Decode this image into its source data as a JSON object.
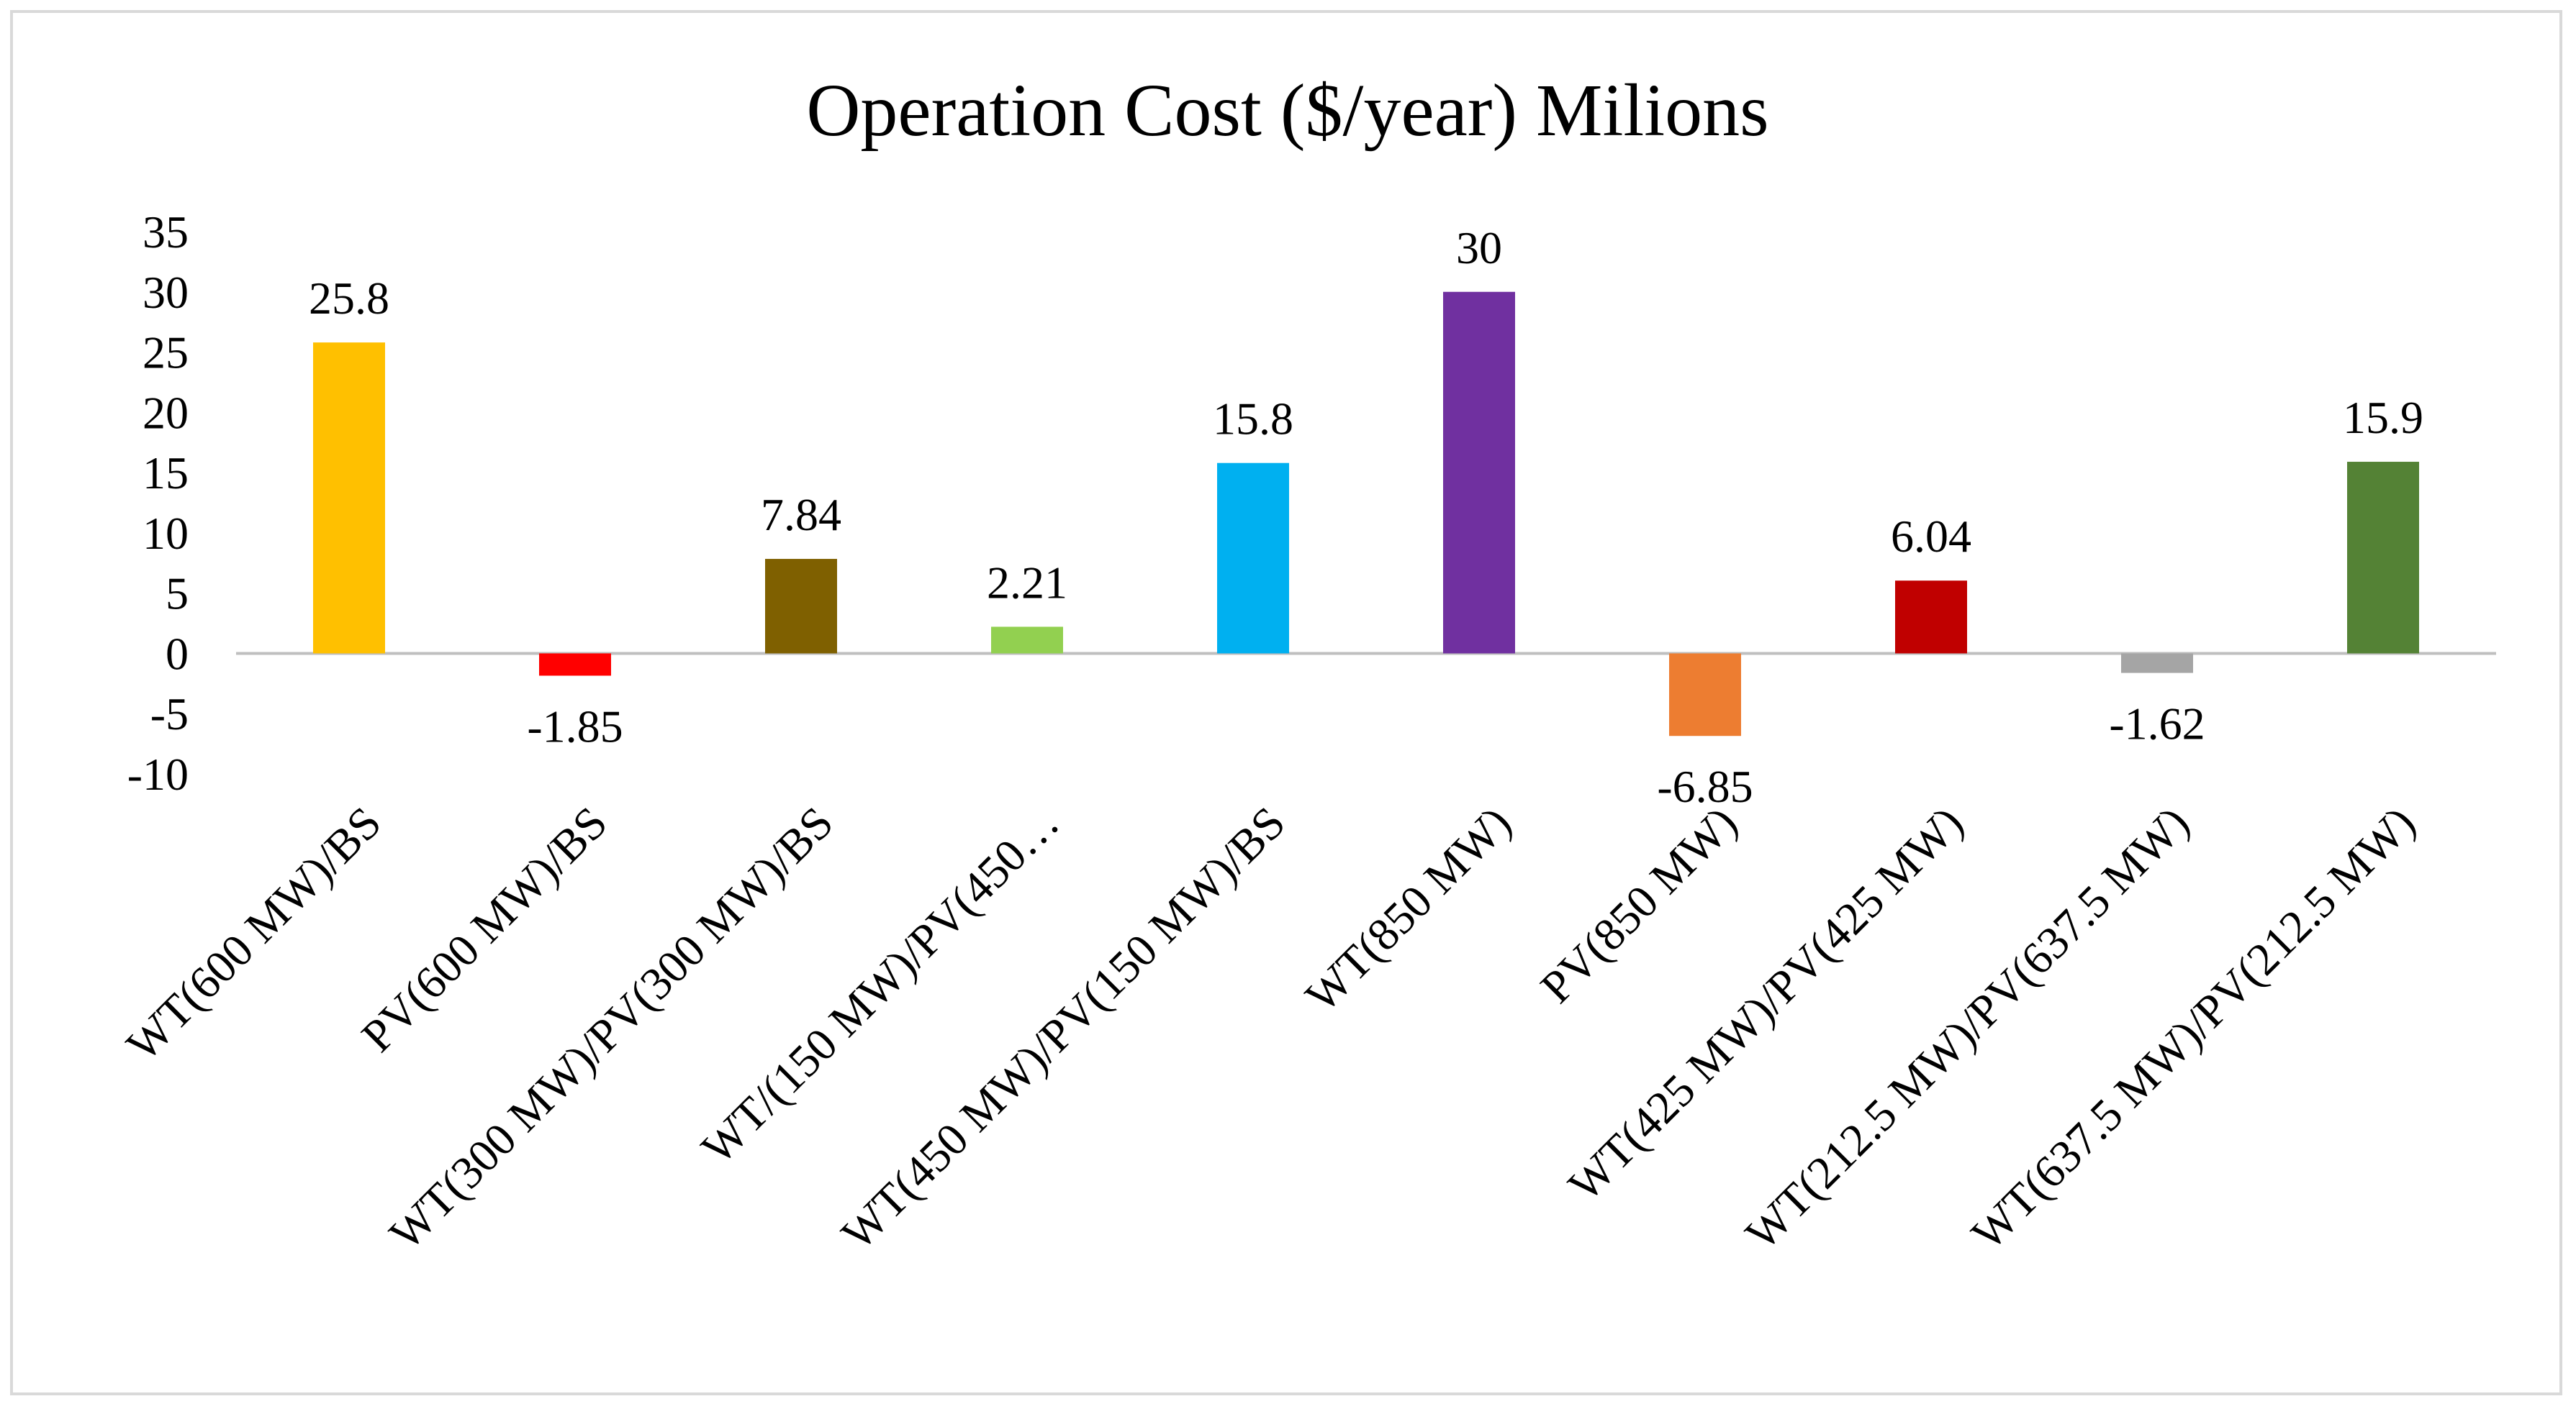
{
  "chart_data": {
    "type": "bar",
    "title": "Operation Cost ($/year)  Milions",
    "xlabel": "",
    "ylabel": "",
    "ylim": [
      -10,
      35
    ],
    "yticks": [
      35,
      30,
      25,
      20,
      15,
      10,
      5,
      0,
      -5,
      -10
    ],
    "grid": false,
    "legend": "none",
    "categories": [
      "WT(600 MW)/BS",
      "PV(600 MW)/BS",
      "WT(300 MW)/PV(300 MW)/BS",
      "WT/(150 MW)/PV(450…",
      "WT(450 MW)/PV(150 MW)/BS",
      "WT(850 MW)",
      "PV(850 MW)",
      "WT(425 MW)/PV(425 MW)",
      "WT(212.5 MW)/PV(637.5 MW)",
      "WT(637.5 MW)/PV(212.5 MW)"
    ],
    "values": [
      25.8,
      -1.85,
      7.84,
      2.21,
      15.8,
      30,
      -6.85,
      6.04,
      -1.62,
      15.9
    ],
    "data_labels": [
      "25.8",
      "-1.85",
      "7.84",
      "2.21",
      "15.8",
      "30",
      "-6.85",
      "6.04",
      "-1.62",
      "15.9"
    ],
    "colors": [
      "#FFC000",
      "#FF0000",
      "#7F6000",
      "#92D050",
      "#00B0F0",
      "#7030A0",
      "#ED7D31",
      "#C00000",
      "#A5A5A5",
      "#548235"
    ]
  }
}
